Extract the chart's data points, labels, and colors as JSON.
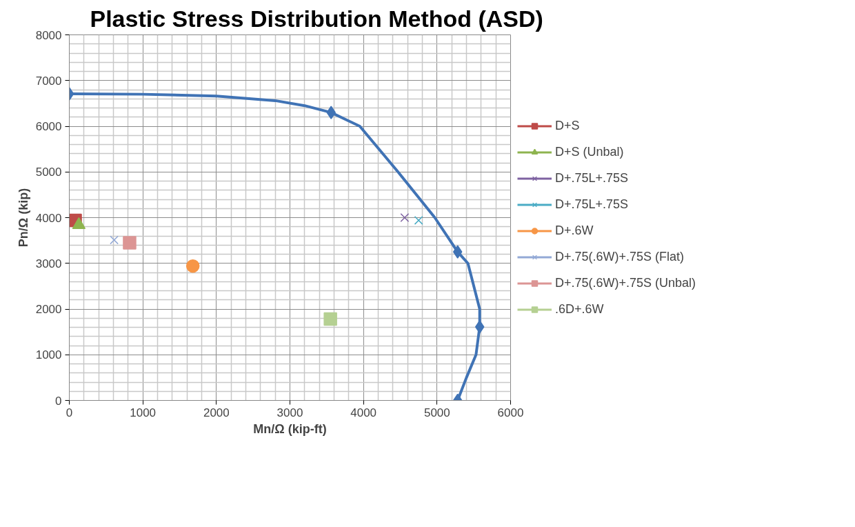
{
  "chart_data": {
    "type": "scatter",
    "title": "Plastic Stress Distribution Method (ASD)",
    "xlabel": "Mn/Ω (kip-ft)",
    "ylabel": "Pn/Ω (kip)",
    "xlim": [
      0,
      6000
    ],
    "xticks": [
      0,
      1000,
      2000,
      3000,
      4000,
      5000,
      6000
    ],
    "ylim": [
      0,
      8000
    ],
    "yticks": [
      0,
      1000,
      2000,
      3000,
      4000,
      5000,
      6000,
      7000,
      8000
    ],
    "grid": true,
    "legend": "right",
    "series": [
      {
        "type": "line",
        "color": "#4073b5",
        "marker": "none",
        "x": [
          0,
          1000,
          2000,
          2800,
          3200,
          3560,
          3950,
          4470,
          4970,
          5280,
          5420,
          5580,
          5580,
          5530,
          5400,
          5280
        ],
        "values": [
          6710,
          6700,
          6660,
          6560,
          6450,
          6300,
          6000,
          5000,
          4000,
          3250,
          3000,
          2000,
          1610,
          1000,
          500,
          0
        ]
      },
      {
        "color": "#4073b5",
        "marker": "diamond",
        "x": [
          0,
          3560,
          5280,
          5580,
          5280
        ],
        "values": [
          6710,
          6300,
          3250,
          1610,
          0
        ]
      },
      {
        "name": "D+S",
        "color": "#be4b48",
        "marker": "square",
        "x": [
          80
        ],
        "values": [
          3940
        ]
      },
      {
        "name": "D+S (Unbal)",
        "color": "#8eb44f",
        "marker": "triangle",
        "x": [
          130
        ],
        "values": [
          3840
        ]
      },
      {
        "name": "D+.75L+.75S",
        "color": "#7e62a1",
        "marker": "cross",
        "x": [
          4560
        ],
        "values": [
          4000
        ]
      },
      {
        "name": "D+.75L+.75S",
        "color": "#4aacc5",
        "marker": "cross",
        "x": [
          4750
        ],
        "values": [
          3940
        ]
      },
      {
        "name": "D+.6W",
        "color": "#f79646",
        "marker": "circle",
        "x": [
          1680
        ],
        "values": [
          2940
        ]
      },
      {
        "name": "D+.75(.6W)+.75S (Flat)",
        "color": "#93a9d6",
        "marker": "cross",
        "x": [
          610
        ],
        "values": [
          3510
        ]
      },
      {
        "name": "D+.75(.6W)+.75S (Unbal)",
        "color": "#dc9594",
        "marker": "square",
        "x": [
          820
        ],
        "values": [
          3450
        ]
      },
      {
        "name": ".6D+.6W",
        "color": "#b5d092",
        "marker": "square",
        "x": [
          3550
        ],
        "values": [
          1780
        ]
      }
    ]
  }
}
